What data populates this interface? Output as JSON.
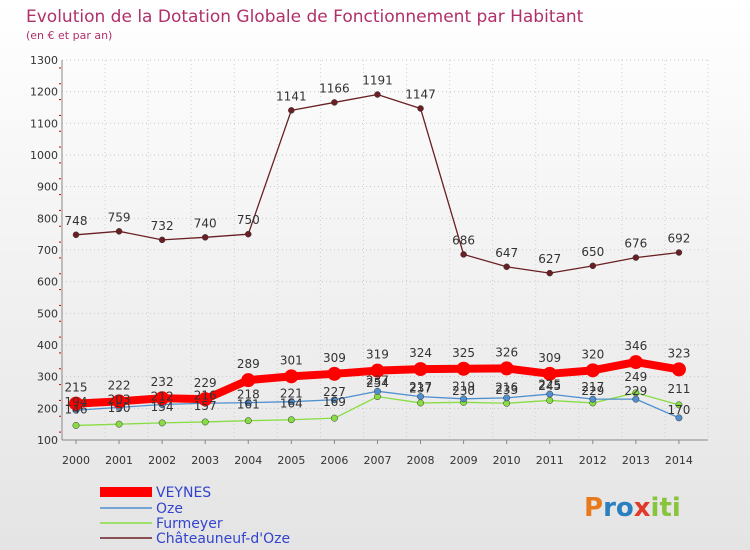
{
  "colors": {
    "veynes": "#ff0000",
    "oze": "#4f8fcf",
    "furmeyer": "#88dd44",
    "chateauneuf": "#6a1f24",
    "title": "#b0306a",
    "axis_text": "#333333",
    "logo_p": "#e87a1e",
    "logo_ro": "#2a7fc0",
    "logo_x": "#e23a2a",
    "logo_iti": "#88c43c"
  },
  "logo": {
    "text": "Proxiti"
  },
  "chart_data": {
    "type": "line",
    "title": "Evolution de la Dotation Globale de Fonctionnement par Habitant",
    "subtitle": "(en € et par an)",
    "xlabel": "",
    "ylabel": "",
    "ylim": [
      100,
      1300
    ],
    "yticks": [
      100,
      200,
      300,
      400,
      500,
      600,
      700,
      800,
      900,
      1000,
      1100,
      1200,
      1300
    ],
    "grid": true,
    "legend_position": "bottom-left",
    "categories": [
      "2000",
      "2001",
      "2002",
      "2003",
      "2004",
      "2005",
      "2006",
      "2007",
      "2008",
      "2009",
      "2010",
      "2011",
      "2012",
      "2013",
      "2014"
    ],
    "series": [
      {
        "name": "VEYNES",
        "key": "veynes",
        "values": [
          215,
          222,
          232,
          229,
          289,
          301,
          309,
          319,
          324,
          325,
          326,
          309,
          320,
          346,
          323
        ]
      },
      {
        "name": "Oze",
        "key": "oze",
        "values": [
          194,
          203,
          212,
          216,
          218,
          221,
          227,
          254,
          237,
          230,
          233,
          245,
          229,
          229,
          170
        ]
      },
      {
        "name": "Furmeyer",
        "key": "furmeyer",
        "values": [
          146,
          150,
          154,
          157,
          161,
          164,
          169,
          237,
          217,
          219,
          216,
          225,
          217,
          249,
          211
        ]
      },
      {
        "name": "Châteauneuf-d'Oze",
        "key": "chateauneuf",
        "values": [
          748,
          759,
          732,
          740,
          750,
          1141,
          1166,
          1191,
          1147,
          686,
          647,
          627,
          650,
          676,
          692
        ]
      }
    ]
  }
}
